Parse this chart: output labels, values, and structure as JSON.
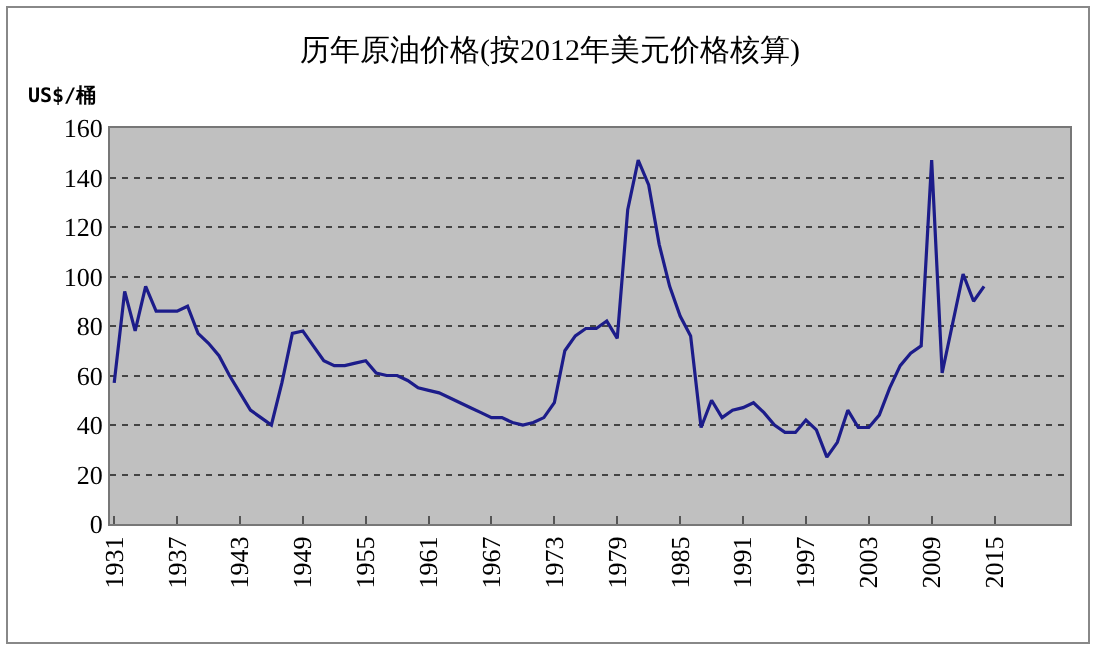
{
  "chart_data": {
    "type": "line",
    "title": "历年原油价格(按2012年美元价格核算)",
    "ylabel": "US$/桶",
    "x": [
      1931,
      1932,
      1933,
      1934,
      1935,
      1936,
      1937,
      1938,
      1939,
      1940,
      1941,
      1942,
      1943,
      1944,
      1945,
      1946,
      1947,
      1948,
      1949,
      1950,
      1951,
      1952,
      1953,
      1954,
      1955,
      1956,
      1957,
      1958,
      1959,
      1960,
      1961,
      1962,
      1963,
      1964,
      1965,
      1966,
      1967,
      1968,
      1969,
      1970,
      1971,
      1972,
      1973,
      1974,
      1975,
      1976,
      1977,
      1978,
      1979,
      1980,
      1981,
      1982,
      1983,
      1984,
      1985,
      1986,
      1987,
      1988,
      1989,
      1990,
      1991,
      1992,
      1993,
      1994,
      1995,
      1996,
      1997,
      1998,
      1999,
      2000,
      2001,
      2002,
      2003,
      2004,
      2005,
      2006,
      2007,
      2008,
      2009,
      2010,
      2011,
      2012,
      2013,
      2014
    ],
    "series": [
      {
        "color": "#1c1c8a",
        "values": [
          57,
          94,
          78,
          96,
          86,
          86,
          86,
          88,
          77,
          73,
          68,
          60,
          53,
          46,
          43,
          40,
          57,
          77,
          78,
          72,
          66,
          64,
          64,
          65,
          66,
          61,
          60,
          60,
          58,
          55,
          54,
          53,
          51,
          49,
          47,
          45,
          43,
          43,
          41,
          40,
          41,
          43,
          49,
          70,
          76,
          79,
          79,
          82,
          75,
          127,
          147,
          137,
          113,
          96,
          84,
          76,
          39,
          50,
          43,
          46,
          47,
          49,
          45,
          40,
          37,
          37,
          42,
          38,
          27,
          33,
          46,
          39,
          39,
          44,
          55,
          64,
          69,
          72,
          147,
          61,
          81,
          101,
          90,
          96
        ]
      }
    ],
    "xlim": [
      1930.6,
      2022.2
    ],
    "xticks": [
      1931,
      1937,
      1943,
      1949,
      1955,
      1961,
      1967,
      1973,
      1979,
      1985,
      1991,
      1997,
      2003,
      2009,
      2015
    ],
    "ylim": [
      0,
      160
    ],
    "yticks": [
      0,
      20,
      40,
      60,
      80,
      100,
      120,
      140,
      160
    ],
    "grid": "y",
    "marker": "none",
    "line_style": "solid"
  }
}
